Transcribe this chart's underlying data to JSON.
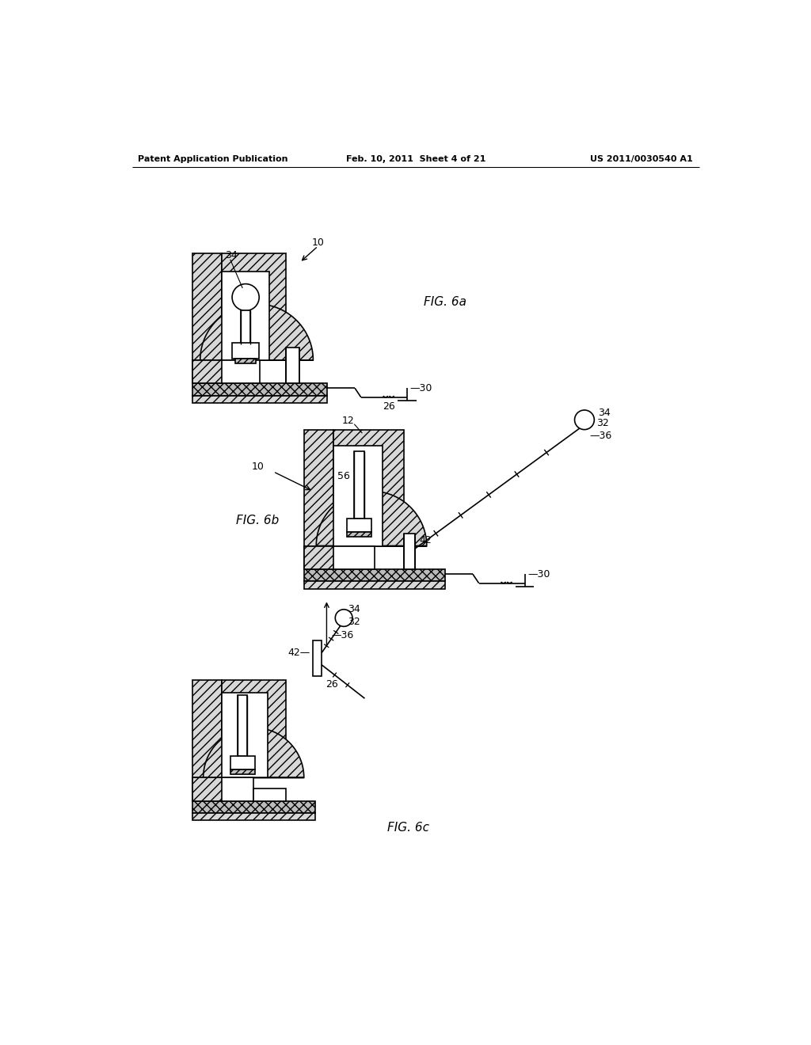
{
  "background_color": "#ffffff",
  "header_left": "Patent Application Publication",
  "header_center": "Feb. 10, 2011  Sheet 4 of 21",
  "header_right": "US 2011/0030540 A1",
  "fig6a_label": "FIG. 6a",
  "fig6b_label": "FIG. 6b",
  "fig6c_label": "FIG. 6c",
  "hatch_diag": "///",
  "hatch_cross": "xxx",
  "hatch_fine": "///",
  "fc_hatch": "#d8d8d8",
  "fc_white": "#ffffff",
  "fc_base": "#cccccc"
}
